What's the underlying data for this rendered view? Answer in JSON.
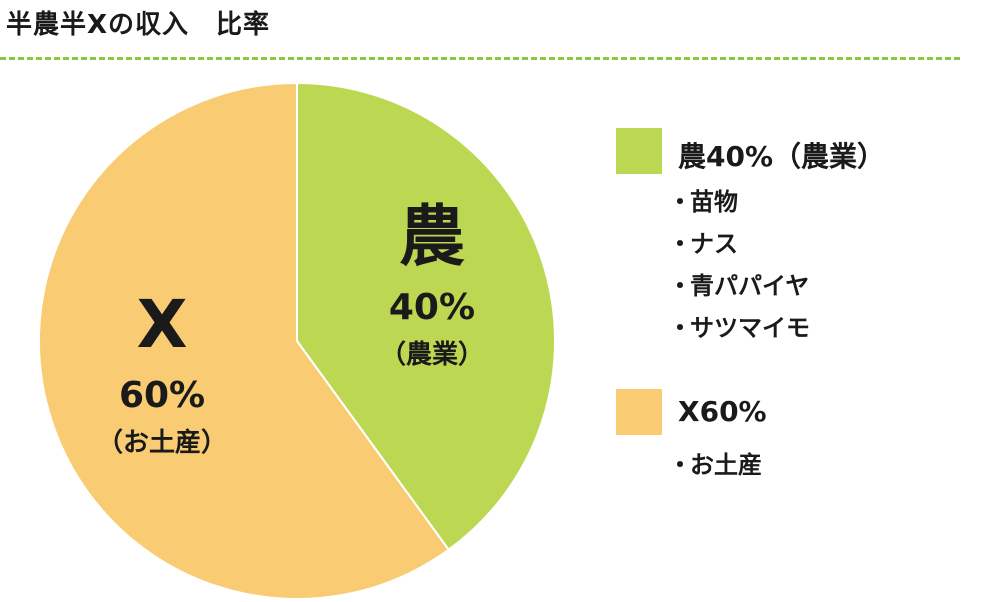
{
  "title": "半農半Xの収入　比率",
  "colors": {
    "farm": "#bcd853",
    "x": "#f9cb72",
    "divider": "#8cc63f",
    "text": "#1a1a1a"
  },
  "chart_data": {
    "type": "pie",
    "slices": [
      {
        "key": "farm",
        "big_label": "農",
        "percent_label": "40%",
        "sub_label": "（農業）",
        "value": 40,
        "color": "#bcd853"
      },
      {
        "key": "x",
        "big_label": "X",
        "percent_label": "60%",
        "sub_label": "（お土産）",
        "value": 60,
        "color": "#f9cb72"
      }
    ]
  },
  "legend": {
    "farm": {
      "title": "農40%（農業）",
      "items": [
        "苗物",
        "ナス",
        "青パパイヤ",
        "サツマイモ"
      ]
    },
    "x": {
      "title": "X60%",
      "items": [
        "お土産"
      ]
    }
  }
}
